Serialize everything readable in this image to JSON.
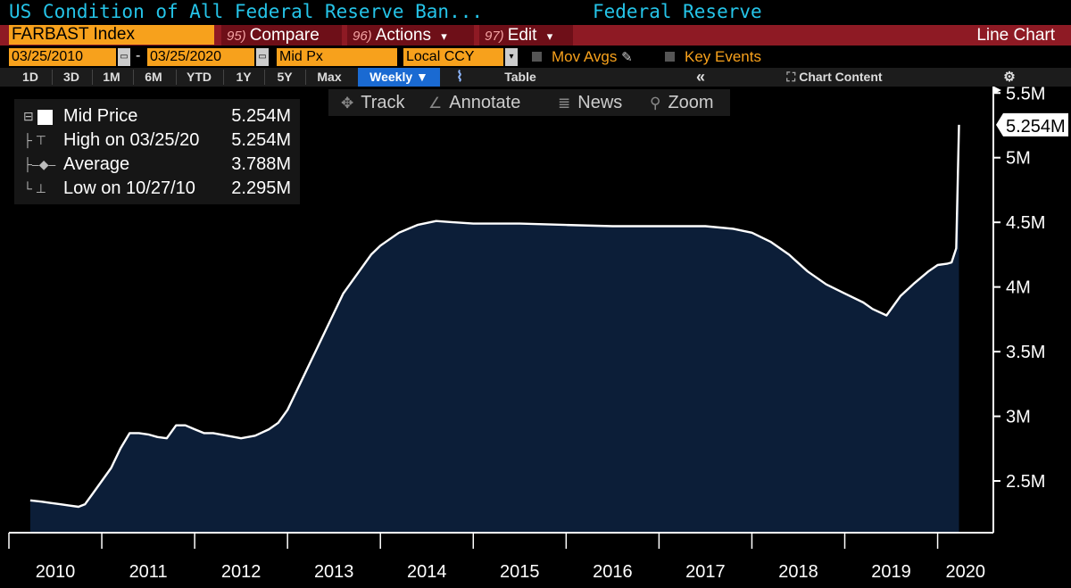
{
  "title": {
    "left": "US Condition of All Federal Reserve Ban...",
    "right": "Federal Reserve"
  },
  "command_bar": {
    "ticker": "FARBAST Index",
    "compare": {
      "num": "95)",
      "label": "Compare"
    },
    "actions": {
      "num": "96)",
      "label": "Actions",
      "arrow": "▾"
    },
    "edit": {
      "num": "97)",
      "label": "Edit",
      "arrow": "▾"
    },
    "chart_type": "Line Chart"
  },
  "options": {
    "start_date": "03/25/2010",
    "end_date": "03/25/2020",
    "separator": "-",
    "price_field": "Mid Px",
    "currency": "Local CCY",
    "mov_avgs": "Mov Avgs",
    "key_events": "Key Events",
    "pencil_icon": "✎"
  },
  "range_bar": {
    "buttons": [
      "1D",
      "3D",
      "1M",
      "6M",
      "YTD",
      "1Y",
      "5Y",
      "Max"
    ],
    "frequency": "Weekly ▼",
    "chart_icon": "⌇",
    "table": "Table",
    "collapse": "«",
    "chart_content": "Chart Content",
    "chart_content_icon": "⛶",
    "settings_icon": "⚙"
  },
  "toolbar": {
    "track": "Track",
    "annotate": "Annotate",
    "news": "News",
    "zoom": "Zoom",
    "track_icon": "✥",
    "annotate_icon": "∠",
    "news_icon": "≣",
    "zoom_icon": "⚲"
  },
  "legend": {
    "rows": [
      {
        "icon": "⊟",
        "label": "Mid Price",
        "value": "5.254M"
      },
      {
        "icon": "├ ⊤",
        "label": "High on 03/25/20",
        "value": "5.254M"
      },
      {
        "icon": "├–◆–",
        "label": "Average",
        "value": "3.788M"
      },
      {
        "icon": "└ ⊥",
        "label": "Low on 10/27/10",
        "value": "2.295M"
      }
    ]
  },
  "colors": {
    "area_fill": "#0c1e38",
    "line": "#ffffff",
    "axis": "#ffffff",
    "accent_orange": "#f7a11c",
    "title_cyan": "#25c4e8",
    "menu_red": "#8e1a24"
  },
  "chart_data": {
    "type": "area",
    "title": "US Condition of All Federal Reserve Ban...",
    "xlabel": "",
    "ylabel": "",
    "xlim": [
      2010.0,
      2020.6
    ],
    "ylim": [
      2.1,
      5.55
    ],
    "y_unit": "M",
    "y_ticks": [
      2.5,
      3.0,
      3.5,
      4.0,
      4.5,
      5.0,
      5.5
    ],
    "y_tick_labels": [
      "2.5M",
      "3M",
      "3.5M",
      "4M",
      "4.5M",
      "5M",
      "5.5M"
    ],
    "x_ticks": [
      2010,
      2011,
      2012,
      2013,
      2014,
      2015,
      2016,
      2017,
      2018,
      2019,
      2020
    ],
    "x_tick_labels": [
      "2010",
      "2011",
      "2012",
      "2013",
      "2014",
      "2015",
      "2016",
      "2017",
      "2018",
      "2019",
      "2020"
    ],
    "last_value_label": "5.254M",
    "grid": false,
    "series": [
      {
        "name": "Mid Price",
        "x": [
          2010.23,
          2010.35,
          2010.45,
          2010.55,
          2010.65,
          2010.75,
          2010.82,
          2010.9,
          2011.0,
          2011.1,
          2011.2,
          2011.3,
          2011.4,
          2011.5,
          2011.6,
          2011.7,
          2011.8,
          2011.9,
          2012.0,
          2012.1,
          2012.2,
          2012.35,
          2012.5,
          2012.65,
          2012.8,
          2012.9,
          2013.0,
          2013.1,
          2013.2,
          2013.3,
          2013.4,
          2013.5,
          2013.6,
          2013.7,
          2013.8,
          2013.9,
          2014.0,
          2014.2,
          2014.4,
          2014.6,
          2014.8,
          2015.0,
          2015.5,
          2016.0,
          2016.5,
          2017.0,
          2017.5,
          2017.8,
          2018.0,
          2018.2,
          2018.4,
          2018.6,
          2018.8,
          2019.0,
          2019.2,
          2019.3,
          2019.45,
          2019.6,
          2019.75,
          2019.9,
          2020.0,
          2020.1,
          2020.15,
          2020.2,
          2020.23
        ],
        "values": [
          2.35,
          2.34,
          2.33,
          2.32,
          2.31,
          2.3,
          2.32,
          2.4,
          2.5,
          2.6,
          2.75,
          2.87,
          2.87,
          2.86,
          2.84,
          2.83,
          2.93,
          2.93,
          2.9,
          2.87,
          2.87,
          2.85,
          2.83,
          2.85,
          2.9,
          2.95,
          3.05,
          3.2,
          3.35,
          3.5,
          3.65,
          3.8,
          3.95,
          4.05,
          4.15,
          4.25,
          4.32,
          4.42,
          4.48,
          4.51,
          4.5,
          4.49,
          4.49,
          4.48,
          4.47,
          4.47,
          4.47,
          4.45,
          4.42,
          4.35,
          4.25,
          4.12,
          4.02,
          3.95,
          3.88,
          3.83,
          3.78,
          3.93,
          4.03,
          4.12,
          4.17,
          4.18,
          4.19,
          4.3,
          5.254
        ]
      }
    ]
  }
}
